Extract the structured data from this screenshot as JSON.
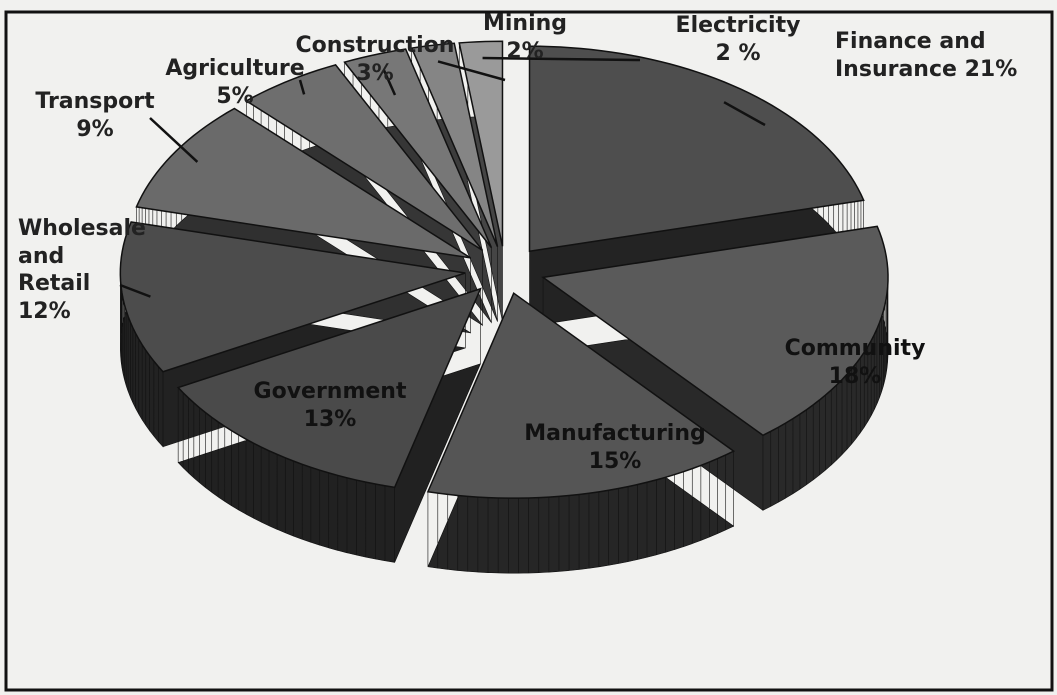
{
  "chart_data": {
    "type": "pie",
    "categories": [
      "Finance and Insurance",
      "Community",
      "Manufacturing",
      "Government",
      "Wholesale and Retail",
      "Transport",
      "Agriculture",
      "Construction",
      "Mining",
      "Electricity"
    ],
    "values": [
      21,
      18,
      15,
      13,
      12,
      9,
      5,
      3,
      2,
      2
    ],
    "value_labels": [
      "21%",
      "18%",
      "15%",
      "13%",
      "12%",
      "9%",
      "5%",
      "3%",
      "2%",
      "2 %"
    ],
    "colors": [
      "#4e4e4e",
      "#5a5a5a",
      "#555555",
      "#4a4a4a",
      "#4c4c4c",
      "#6a6a6a",
      "#6e6e6e",
      "#777777",
      "#858585",
      "#9a9a9a"
    ]
  }
}
